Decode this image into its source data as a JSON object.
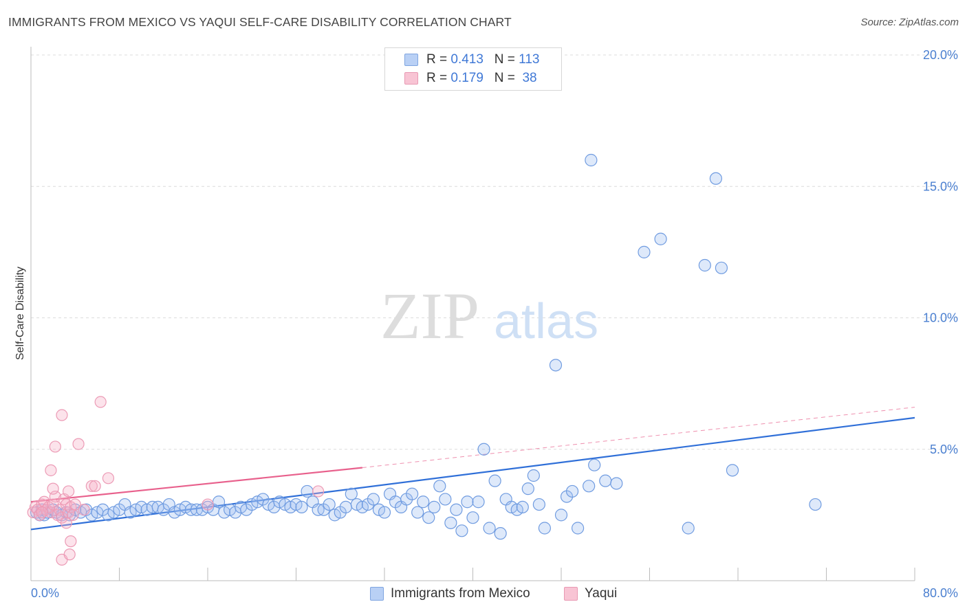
{
  "title": "IMMIGRANTS FROM MEXICO VS YAQUI SELF-CARE DISABILITY CORRELATION CHART",
  "source": "Source: ZipAtlas.com",
  "watermark": {
    "zip": "ZIP",
    "atlas": "atlas"
  },
  "legend": {
    "r_label": "R =",
    "n_label": "N =",
    "rows": [
      {
        "r": "0.413",
        "n": "113",
        "color": "#b9d0f5"
      },
      {
        "r": "0.179",
        "n": " 38",
        "color": "#f8c4d4"
      }
    ]
  },
  "bottom_legend": [
    {
      "label": "Immigrants from Mexico",
      "color": "#b9d0f5"
    },
    {
      "label": "Yaqui",
      "color": "#f8c4d4"
    }
  ],
  "chart_data": {
    "type": "scatter",
    "title": "IMMIGRANTS FROM MEXICO VS YAQUI SELF-CARE DISABILITY CORRELATION CHART",
    "ylabel": "Self-Care Disability",
    "xlim": [
      0,
      80
    ],
    "ylim": [
      0,
      20
    ],
    "x_tick_labels": [
      "0.0%",
      "80.0%"
    ],
    "y_ticks": [
      5,
      10,
      15,
      20
    ],
    "y_tick_labels": [
      "5.0%",
      "10.0%",
      "15.0%",
      "20.0%"
    ],
    "grid": "horizontal dashed",
    "legend_position": "top-center",
    "series": [
      {
        "name": "Immigrants from Mexico",
        "color": "#4a86e8",
        "trend": {
          "x": [
            0,
            80
          ],
          "y": [
            1.95,
            6.2
          ],
          "style": "solid",
          "color": "#2f6fd8"
        },
        "points": [
          [
            0.5,
            2.6
          ],
          [
            0.8,
            2.5
          ],
          [
            1.0,
            2.7
          ],
          [
            1.2,
            2.5
          ],
          [
            1.5,
            2.6
          ],
          [
            2.0,
            2.7
          ],
          [
            2.3,
            2.6
          ],
          [
            2.8,
            2.5
          ],
          [
            3.2,
            2.6
          ],
          [
            3.5,
            2.5
          ],
          [
            4.0,
            2.7
          ],
          [
            4.5,
            2.6
          ],
          [
            5.0,
            2.7
          ],
          [
            5.5,
            2.5
          ],
          [
            6.0,
            2.6
          ],
          [
            6.5,
            2.7
          ],
          [
            7.0,
            2.5
          ],
          [
            7.5,
            2.6
          ],
          [
            8.0,
            2.7
          ],
          [
            8.5,
            2.9
          ],
          [
            9.0,
            2.6
          ],
          [
            9.5,
            2.7
          ],
          [
            10.0,
            2.8
          ],
          [
            10.5,
            2.7
          ],
          [
            11.0,
            2.8
          ],
          [
            11.5,
            2.8
          ],
          [
            12.0,
            2.7
          ],
          [
            12.5,
            2.9
          ],
          [
            13.0,
            2.6
          ],
          [
            13.5,
            2.7
          ],
          [
            14.0,
            2.8
          ],
          [
            14.5,
            2.7
          ],
          [
            15.0,
            2.7
          ],
          [
            15.5,
            2.7
          ],
          [
            16.0,
            2.8
          ],
          [
            16.5,
            2.7
          ],
          [
            17.0,
            3.0
          ],
          [
            17.5,
            2.6
          ],
          [
            18.0,
            2.7
          ],
          [
            18.5,
            2.6
          ],
          [
            19.0,
            2.8
          ],
          [
            19.5,
            2.7
          ],
          [
            20.0,
            2.9
          ],
          [
            20.5,
            3.0
          ],
          [
            21.0,
            3.1
          ],
          [
            21.5,
            2.9
          ],
          [
            22.0,
            2.8
          ],
          [
            22.5,
            3.0
          ],
          [
            23.0,
            2.9
          ],
          [
            23.5,
            2.8
          ],
          [
            24.0,
            2.9
          ],
          [
            24.5,
            2.8
          ],
          [
            25.0,
            3.4
          ],
          [
            25.5,
            3.0
          ],
          [
            26.0,
            2.7
          ],
          [
            26.5,
            2.7
          ],
          [
            27.0,
            2.9
          ],
          [
            27.5,
            2.5
          ],
          [
            28.0,
            2.6
          ],
          [
            28.5,
            2.8
          ],
          [
            29.0,
            3.3
          ],
          [
            29.5,
            2.9
          ],
          [
            30.0,
            2.8
          ],
          [
            30.5,
            2.9
          ],
          [
            31.0,
            3.1
          ],
          [
            31.5,
            2.7
          ],
          [
            32.0,
            2.6
          ],
          [
            32.5,
            3.3
          ],
          [
            33.0,
            3.0
          ],
          [
            33.5,
            2.8
          ],
          [
            34.0,
            3.1
          ],
          [
            34.5,
            3.3
          ],
          [
            35.0,
            2.6
          ],
          [
            35.5,
            3.0
          ],
          [
            36.0,
            2.4
          ],
          [
            36.5,
            2.8
          ],
          [
            37.0,
            3.6
          ],
          [
            37.5,
            3.1
          ],
          [
            38.0,
            2.2
          ],
          [
            38.5,
            2.7
          ],
          [
            39.0,
            1.9
          ],
          [
            39.5,
            3.0
          ],
          [
            40.0,
            2.4
          ],
          [
            40.5,
            3.0
          ],
          [
            41.0,
            5.0
          ],
          [
            41.5,
            2.0
          ],
          [
            42.0,
            3.8
          ],
          [
            42.5,
            1.8
          ],
          [
            43.0,
            3.1
          ],
          [
            43.5,
            2.8
          ],
          [
            44.0,
            2.7
          ],
          [
            44.5,
            2.8
          ],
          [
            45.0,
            3.5
          ],
          [
            45.5,
            4.0
          ],
          [
            46.0,
            2.9
          ],
          [
            46.5,
            2.0
          ],
          [
            47.5,
            8.2
          ],
          [
            48.0,
            2.5
          ],
          [
            48.5,
            3.2
          ],
          [
            49.0,
            3.4
          ],
          [
            49.5,
            2.0
          ],
          [
            50.5,
            3.6
          ],
          [
            51.0,
            4.4
          ],
          [
            52.0,
            3.8
          ],
          [
            53.0,
            3.7
          ],
          [
            55.5,
            12.5
          ],
          [
            57.0,
            13.0
          ],
          [
            59.5,
            2.0
          ],
          [
            61.0,
            12.0
          ],
          [
            62.5,
            11.9
          ],
          [
            62.0,
            15.3
          ],
          [
            63.5,
            4.2
          ],
          [
            71.0,
            2.9
          ],
          [
            50.7,
            16.0
          ]
        ]
      },
      {
        "name": "Yaqui",
        "color": "#f08aac",
        "trend": {
          "x": [
            0,
            30
          ],
          "y": [
            3.0,
            4.3
          ],
          "style": "solid",
          "x_dashed_to": 80,
          "y_dashed_to": 6.6,
          "color": "#e8608c"
        },
        "points": [
          [
            0.2,
            2.6
          ],
          [
            0.4,
            2.8
          ],
          [
            0.6,
            2.7
          ],
          [
            0.8,
            2.5
          ],
          [
            1.0,
            2.9
          ],
          [
            1.2,
            3.0
          ],
          [
            1.4,
            2.7
          ],
          [
            1.6,
            2.8
          ],
          [
            1.8,
            2.6
          ],
          [
            2.0,
            2.9
          ],
          [
            2.2,
            3.2
          ],
          [
            2.4,
            2.5
          ],
          [
            2.6,
            2.7
          ],
          [
            2.8,
            2.4
          ],
          [
            3.0,
            3.1
          ],
          [
            3.2,
            2.9
          ],
          [
            3.4,
            2.6
          ],
          [
            3.6,
            2.8
          ],
          [
            3.8,
            2.5
          ],
          [
            4.0,
            2.9
          ],
          [
            1.8,
            4.2
          ],
          [
            2.0,
            3.5
          ],
          [
            2.2,
            5.1
          ],
          [
            2.8,
            6.3
          ],
          [
            3.4,
            3.4
          ],
          [
            4.3,
            5.2
          ],
          [
            5.5,
            3.6
          ],
          [
            6.3,
            6.8
          ],
          [
            7.0,
            3.9
          ],
          [
            5.8,
            3.6
          ],
          [
            3.2,
            2.2
          ],
          [
            3.6,
            1.5
          ],
          [
            2.8,
            0.8
          ],
          [
            3.5,
            1.0
          ],
          [
            16.0,
            2.9
          ],
          [
            26.0,
            3.4
          ],
          [
            1.0,
            2.6
          ],
          [
            4.8,
            2.7
          ]
        ]
      }
    ]
  }
}
